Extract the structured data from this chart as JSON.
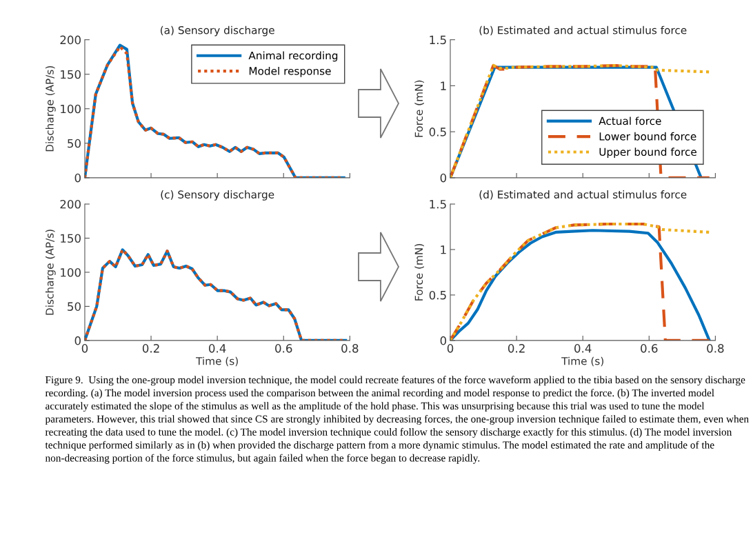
{
  "chart_data": [
    {
      "type": "line",
      "title": "(a) Sensory discharge",
      "ylabel": "Discharge (AP/s)",
      "xlim": [
        0,
        0.8
      ],
      "xticks": [
        0,
        0.2,
        0.4,
        0.6,
        0.8
      ],
      "ylim": [
        0,
        200
      ],
      "yticks": [
        0,
        50,
        100,
        150,
        200
      ],
      "tick_labels": "y",
      "legend": "top right",
      "grid": false,
      "x": [
        0,
        0.033,
        0.068,
        0.106,
        0.127,
        0.144,
        0.162,
        0.183,
        0.2,
        0.221,
        0.238,
        0.256,
        0.284,
        0.304,
        0.325,
        0.343,
        0.36,
        0.378,
        0.395,
        0.416,
        0.437,
        0.454,
        0.472,
        0.49,
        0.51,
        0.527,
        0.545,
        0.583,
        0.601,
        0.636,
        0.782
      ],
      "series": [
        {
          "name": "Animal recording",
          "color": "#0072bd",
          "line_style": "solid",
          "values": [
            0,
            121,
            163,
            192,
            186,
            108,
            81,
            69,
            72,
            64,
            63,
            57,
            58,
            51,
            52,
            45,
            48,
            46,
            48,
            44,
            38,
            44,
            38,
            44,
            41,
            35,
            36,
            36,
            30,
            0,
            0
          ]
        },
        {
          "name": "Model response",
          "color": "#d95319",
          "line_style": "dotted",
          "values": [
            0,
            121,
            163,
            190,
            180,
            108,
            81,
            69,
            72,
            64,
            63,
            57,
            58,
            51,
            52,
            45,
            48,
            46,
            48,
            44,
            38,
            44,
            38,
            44,
            41,
            35,
            36,
            36,
            30,
            0,
            0
          ]
        }
      ]
    },
    {
      "type": "line",
      "title": "(b) Estimated and actual stimulus force",
      "ylabel": "Force (mN)",
      "xlim": [
        0,
        0.8
      ],
      "xticks": [
        0,
        0.2,
        0.4,
        0.6,
        0.8
      ],
      "ylim": [
        0,
        1.5
      ],
      "yticks": [
        0,
        0.5,
        1,
        1.5
      ],
      "tick_labels": "y",
      "legend": "bottom",
      "grid": false,
      "series": [
        {
          "name": "Actual force",
          "color": "#0072bd",
          "line_style": "solid",
          "x": [
            0,
            0.134,
            0.622,
            0.757
          ],
          "values": [
            0,
            1.2,
            1.2,
            0
          ]
        },
        {
          "name": "Lower bound force",
          "color": "#d95319",
          "line_style": "dashed",
          "x": [
            0,
            0.13,
            0.15,
            0.17,
            0.19,
            0.3,
            0.4,
            0.5,
            0.55,
            0.618,
            0.636,
            0.782
          ],
          "values": [
            0,
            1.22,
            1.18,
            1.18,
            1.2,
            1.21,
            1.21,
            1.22,
            1.21,
            1.21,
            0,
            0
          ]
        },
        {
          "name": "Upper bound force",
          "color": "#edb120",
          "line_style": "dotted",
          "x": [
            0,
            0.13,
            0.15,
            0.17,
            0.19,
            0.3,
            0.4,
            0.5,
            0.55,
            0.618,
            0.625,
            0.782
          ],
          "values": [
            0,
            1.22,
            1.19,
            1.19,
            1.2,
            1.21,
            1.21,
            1.22,
            1.21,
            1.2,
            1.17,
            1.15
          ]
        }
      ]
    },
    {
      "type": "line",
      "title": "(c) Sensory discharge",
      "ylabel": "Discharge (AP/s)",
      "xlabel": "Time (s)",
      "xlim": [
        0,
        0.8
      ],
      "xticks": [
        0,
        0.2,
        0.4,
        0.6,
        0.8
      ],
      "ylim": [
        0,
        200
      ],
      "yticks": [
        0,
        50,
        100,
        150,
        200
      ],
      "grid": false,
      "x": [
        0,
        0.036,
        0.054,
        0.075,
        0.093,
        0.114,
        0.131,
        0.152,
        0.173,
        0.191,
        0.208,
        0.229,
        0.249,
        0.268,
        0.286,
        0.306,
        0.324,
        0.342,
        0.363,
        0.38,
        0.401,
        0.422,
        0.44,
        0.461,
        0.479,
        0.5,
        0.517,
        0.539,
        0.556,
        0.577,
        0.594,
        0.615,
        0.633,
        0.654,
        0.787
      ],
      "series": [
        {
          "color": "#0072bd",
          "line_style": "solid",
          "values": [
            0,
            50,
            106,
            116,
            108,
            133,
            124,
            109,
            111,
            126,
            110,
            112,
            131,
            108,
            106,
            109,
            105,
            92,
            81,
            82,
            73,
            73,
            71,
            61,
            59,
            62,
            52,
            56,
            51,
            54,
            45,
            45,
            32,
            0,
            0
          ]
        },
        {
          "color": "#d95319",
          "line_style": "dotted",
          "values": [
            0,
            50,
            106,
            116,
            108,
            133,
            124,
            109,
            111,
            126,
            110,
            112,
            131,
            108,
            106,
            109,
            105,
            92,
            81,
            82,
            73,
            73,
            71,
            61,
            59,
            62,
            52,
            56,
            51,
            54,
            45,
            45,
            32,
            0,
            0
          ]
        }
      ]
    },
    {
      "type": "line",
      "title": "(d) Estimated and actual stimulus force",
      "ylabel": "Force (mN)",
      "xlabel": "Time (s)",
      "xlim": [
        0,
        0.8
      ],
      "xticks": [
        0,
        0.2,
        0.4,
        0.6,
        0.8
      ],
      "ylim": [
        0,
        1.5
      ],
      "yticks": [
        0,
        0.5,
        1,
        1.5
      ],
      "grid": false,
      "series": [
        {
          "color": "#0072bd",
          "line_style": "solid",
          "x": [
            0,
            0.026,
            0.054,
            0.082,
            0.109,
            0.137,
            0.172,
            0.207,
            0.242,
            0.277,
            0.318,
            0.367,
            0.43,
            0.541,
            0.597,
            0.625,
            0.667,
            0.709,
            0.75,
            0.782
          ],
          "values": [
            0,
            0.1,
            0.19,
            0.34,
            0.55,
            0.71,
            0.85,
            0.97,
            1.07,
            1.14,
            1.19,
            1.2,
            1.21,
            1.2,
            1.18,
            1.08,
            0.85,
            0.58,
            0.28,
            0
          ]
        },
        {
          "color": "#d95319",
          "line_style": "dashed",
          "x": [
            0,
            0.033,
            0.068,
            0.109,
            0.151,
            0.193,
            0.235,
            0.277,
            0.318,
            0.374,
            0.472,
            0.583,
            0.63,
            0.649,
            0.782
          ],
          "values": [
            0,
            0.2,
            0.43,
            0.63,
            0.78,
            0.95,
            1.1,
            1.17,
            1.24,
            1.27,
            1.28,
            1.28,
            1.25,
            0,
            0
          ]
        },
        {
          "color": "#edb120",
          "line_style": "dotted",
          "x": [
            0,
            0.033,
            0.068,
            0.109,
            0.151,
            0.193,
            0.235,
            0.277,
            0.318,
            0.374,
            0.472,
            0.583,
            0.625,
            0.639,
            0.782
          ],
          "values": [
            0,
            0.2,
            0.43,
            0.63,
            0.78,
            0.95,
            1.1,
            1.17,
            1.24,
            1.27,
            1.28,
            1.28,
            1.25,
            1.22,
            1.19
          ]
        }
      ],
      "annotations": [
        "Figure 9.  Using the one-group model inversion technique, the model could recreate features of the force waveform applied to the tibia based on the sensory discharge recording. (a) The model inversion process used the comparison between the animal recording and model response to predict the force. (b) The inverted model accurately estimated the slope of the stimulus as well as the amplitude of the hold phase. This was unsurprising because this trial was used to tune the model parameters. However, this trial showed that since CS are strongly inhibited by decreasing forces, the one-group inversion technique failed to estimate them, even when recreating the data used to tune the model. (c) The model inversion technique could follow the sensory discharge exactly for this stimulus. (d) The model inversion technique performed similarly as in (b) when provided the discharge pattern from a more dynamic stimulus. The model estimated the rate and amplitude of the non-decreasing portion of the force stimulus, but again failed when the force began to decrease rapidly."
      ]
    }
  ]
}
